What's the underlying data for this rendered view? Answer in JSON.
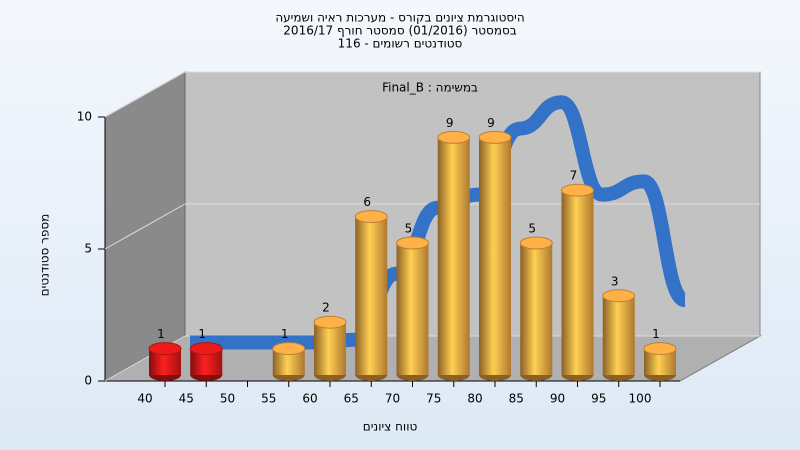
{
  "chart_data": {
    "type": "bar3d",
    "title": [
      "היסטוגרמת ציונים בקורס - מערכות ראיה ושמיעה",
      "בסמסטר  (01/2016)  סמסטר חורף 2016/17",
      "סטודנטים רשומים - 116"
    ],
    "annotation": "במשימה : Final_B",
    "x_label": "טווח ציונים",
    "y_label": "מספר סטודנטים",
    "categories": [
      "40",
      "45",
      "50",
      "55",
      "60",
      "65",
      "70",
      "75",
      "80",
      "85",
      "90",
      "95",
      "100"
    ],
    "values": [
      1,
      1,
      null,
      1,
      2,
      6,
      5,
      9,
      9,
      5,
      7,
      3,
      1
    ],
    "colors": [
      "#d81818",
      "#d81818",
      "#e8a040",
      "#e8a040",
      "#e8a040",
      "#e8a040",
      "#e8a040",
      "#e8a040",
      "#e8a040",
      "#e8a040",
      "#e8a040",
      "#e8a040",
      "#e8a040"
    ],
    "curve": {
      "color": "#3472c8",
      "values": [
        0.4,
        0.4,
        0.4,
        0.4,
        0.5,
        3,
        5.5,
        6,
        8.5,
        9.5,
        6,
        6.5,
        2
      ]
    },
    "ylim": [
      0,
      10
    ],
    "yticks": [
      0,
      5,
      10
    ],
    "grid": true
  }
}
